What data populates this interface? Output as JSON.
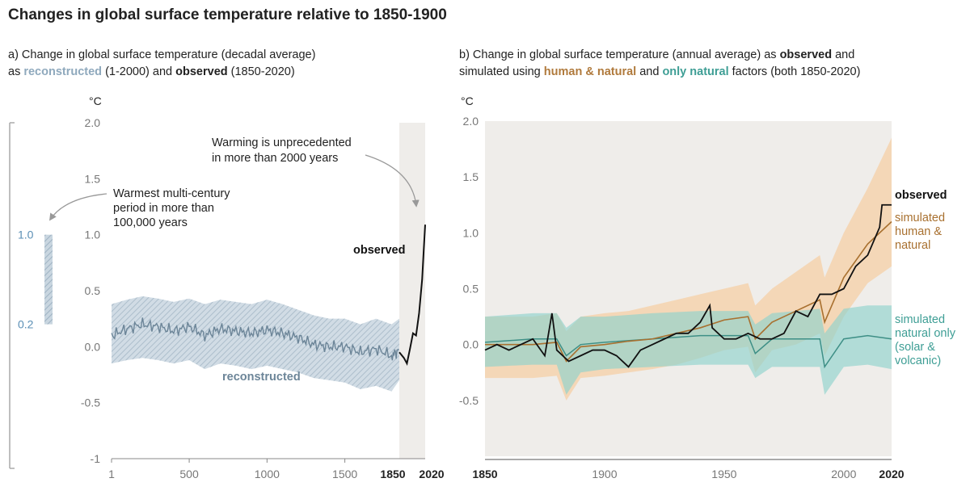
{
  "title": "Changes in global surface temperature relative to 1850-1900",
  "panel_a": {
    "subtitle_prefix": "a) Change in global surface temperature (decadal average)",
    "subtitle_as": "as ",
    "subtitle_reconstructed": "reconstructed",
    "subtitle_mid": " (1-2000) and ",
    "subtitle_observed": "observed",
    "subtitle_end": " (1850-2020)",
    "unit": "°C",
    "annotation_warming": [
      "Warming is unprecedented",
      "in more than 2000 years"
    ],
    "annotation_warmest": [
      "Warmest multi-century",
      "period in more than",
      "100,000 years"
    ],
    "label_observed": "observed",
    "label_reconstructed": "reconstructed",
    "bar_top_label": "1.0",
    "bar_bottom_label": "0.2",
    "y_ticks": [
      "2.0",
      "1.5",
      "1.0",
      "0.5",
      "0.0",
      "-0.5",
      "-1"
    ],
    "x_ticks": [
      "1",
      "500",
      "1000",
      "1500"
    ],
    "x_ticks_bold": [
      "1850",
      "2020"
    ]
  },
  "panel_b": {
    "subtitle_line1_prefix": "b) Change in global surface temperature (annual average) as ",
    "subtitle_line1_observed": "observed",
    "subtitle_line1_end": " and",
    "subtitle_line2_prefix": "simulated using ",
    "subtitle_line2_hn": "human & natural",
    "subtitle_line2_mid": " and ",
    "subtitle_line2_nat": "only natural",
    "subtitle_line2_end": " factors (both 1850-2020)",
    "unit": "°C",
    "label_observed": "observed",
    "label_hn": [
      "simulated",
      "human &",
      "natural"
    ],
    "label_nat": [
      "simulated",
      "natural only",
      "(solar &",
      "volcanic)"
    ],
    "y_ticks": [
      "2.0",
      "1.5",
      "1.0",
      "0.5",
      "0.0",
      "-0.5"
    ],
    "x_ticks": [
      "1900",
      "1950",
      "2000"
    ],
    "x_ticks_bold": [
      "1850",
      "2020"
    ]
  },
  "colors": {
    "reconstructed": "#8fa9bd",
    "reconstructed_line": "#6c8598",
    "observed": "#111111",
    "human_natural": "#a8702f",
    "human_natural_band": "#f6cfa6",
    "natural": "#3e8f86",
    "natural_band": "#8fd3cc",
    "shade": "#efedea"
  },
  "chart_data": [
    {
      "type": "line",
      "ylim": [
        -1,
        2
      ],
      "xlim": [
        1,
        2020
      ],
      "series": [
        {
          "name": "reconstructed",
          "x": [
            1,
            100,
            200,
            300,
            400,
            500,
            600,
            700,
            800,
            900,
            1000,
            1100,
            1200,
            1300,
            1400,
            1500,
            1600,
            1700,
            1800,
            1850
          ],
          "y": [
            0.1,
            0.16,
            0.2,
            0.18,
            0.14,
            0.18,
            0.1,
            0.16,
            0.14,
            0.12,
            0.15,
            0.12,
            0.08,
            0.02,
            0.0,
            0.0,
            -0.05,
            -0.02,
            -0.08,
            -0.03
          ],
          "band_low": [
            -0.15,
            -0.12,
            -0.1,
            -0.12,
            -0.15,
            -0.12,
            -0.2,
            -0.15,
            -0.17,
            -0.2,
            -0.17,
            -0.2,
            -0.23,
            -0.28,
            -0.3,
            -0.32,
            -0.38,
            -0.35,
            -0.4,
            -0.3
          ],
          "band_high": [
            0.38,
            0.42,
            0.45,
            0.43,
            0.4,
            0.43,
            0.38,
            0.42,
            0.4,
            0.38,
            0.42,
            0.38,
            0.33,
            0.28,
            0.25,
            0.25,
            0.2,
            0.25,
            0.2,
            0.25
          ]
        },
        {
          "name": "observed",
          "x": [
            1850,
            1880,
            1900,
            1920,
            1940,
            1960,
            1980,
            1990,
            2000,
            2010,
            2020
          ],
          "y": [
            -0.05,
            -0.1,
            -0.15,
            -0.02,
            0.12,
            0.1,
            0.3,
            0.45,
            0.6,
            0.85,
            1.09
          ]
        }
      ],
      "annotation_bar": {
        "low": 0.2,
        "high": 1.0
      }
    },
    {
      "type": "line",
      "ylim": [
        -1,
        2
      ],
      "xlim": [
        1850,
        2020
      ],
      "series": [
        {
          "name": "observed",
          "x": [
            1850,
            1855,
            1860,
            1865,
            1870,
            1875,
            1878,
            1880,
            1885,
            1890,
            1895,
            1900,
            1905,
            1910,
            1915,
            1920,
            1925,
            1930,
            1935,
            1940,
            1944,
            1945,
            1950,
            1955,
            1960,
            1965,
            1970,
            1975,
            1980,
            1985,
            1990,
            1995,
            2000,
            2005,
            2010,
            2015,
            2016,
            2020
          ],
          "y": [
            -0.05,
            0.0,
            -0.05,
            0.0,
            0.05,
            -0.1,
            0.28,
            -0.05,
            -0.15,
            -0.1,
            -0.05,
            -0.05,
            -0.1,
            -0.2,
            -0.05,
            0.0,
            0.05,
            0.1,
            0.1,
            0.2,
            0.35,
            0.15,
            0.05,
            0.05,
            0.1,
            0.05,
            0.05,
            0.1,
            0.3,
            0.25,
            0.45,
            0.45,
            0.5,
            0.7,
            0.8,
            1.05,
            1.25,
            1.25
          ]
        },
        {
          "name": "simulated human & natural",
          "x": [
            1850,
            1870,
            1880,
            1884,
            1890,
            1900,
            1910,
            1920,
            1930,
            1940,
            1950,
            1960,
            1963,
            1970,
            1980,
            1990,
            1992,
            2000,
            2010,
            2020
          ],
          "y": [
            0.0,
            0.0,
            0.02,
            -0.15,
            -0.02,
            0.0,
            0.03,
            0.05,
            0.1,
            0.15,
            0.22,
            0.25,
            0.05,
            0.2,
            0.3,
            0.4,
            0.2,
            0.6,
            0.9,
            1.1
          ],
          "band_low": [
            -0.3,
            -0.3,
            -0.28,
            -0.5,
            -0.3,
            -0.28,
            -0.25,
            -0.22,
            -0.18,
            -0.12,
            -0.05,
            -0.02,
            -0.25,
            -0.05,
            0.0,
            0.1,
            -0.1,
            0.25,
            0.55,
            0.7
          ],
          "band_high": [
            0.25,
            0.25,
            0.28,
            0.12,
            0.25,
            0.28,
            0.3,
            0.35,
            0.4,
            0.45,
            0.5,
            0.55,
            0.35,
            0.5,
            0.65,
            0.8,
            0.6,
            1.0,
            1.4,
            1.85
          ]
        },
        {
          "name": "simulated natural only (solar & volcanic)",
          "x": [
            1850,
            1870,
            1880,
            1884,
            1890,
            1900,
            1920,
            1940,
            1960,
            1963,
            1970,
            1980,
            1990,
            1992,
            2000,
            2010,
            2020
          ],
          "y": [
            0.02,
            0.05,
            0.05,
            -0.1,
            0.0,
            0.02,
            0.05,
            0.08,
            0.08,
            -0.08,
            0.05,
            0.05,
            0.05,
            -0.2,
            0.05,
            0.08,
            0.05
          ],
          "band_low": [
            -0.2,
            -0.18,
            -0.18,
            -0.45,
            -0.25,
            -0.22,
            -0.2,
            -0.18,
            -0.18,
            -0.3,
            -0.2,
            -0.2,
            -0.2,
            -0.45,
            -0.2,
            -0.18,
            -0.22
          ],
          "band_high": [
            0.25,
            0.28,
            0.28,
            0.15,
            0.25,
            0.25,
            0.28,
            0.3,
            0.3,
            0.18,
            0.28,
            0.3,
            0.32,
            0.1,
            0.32,
            0.35,
            0.35
          ]
        }
      ]
    }
  ]
}
